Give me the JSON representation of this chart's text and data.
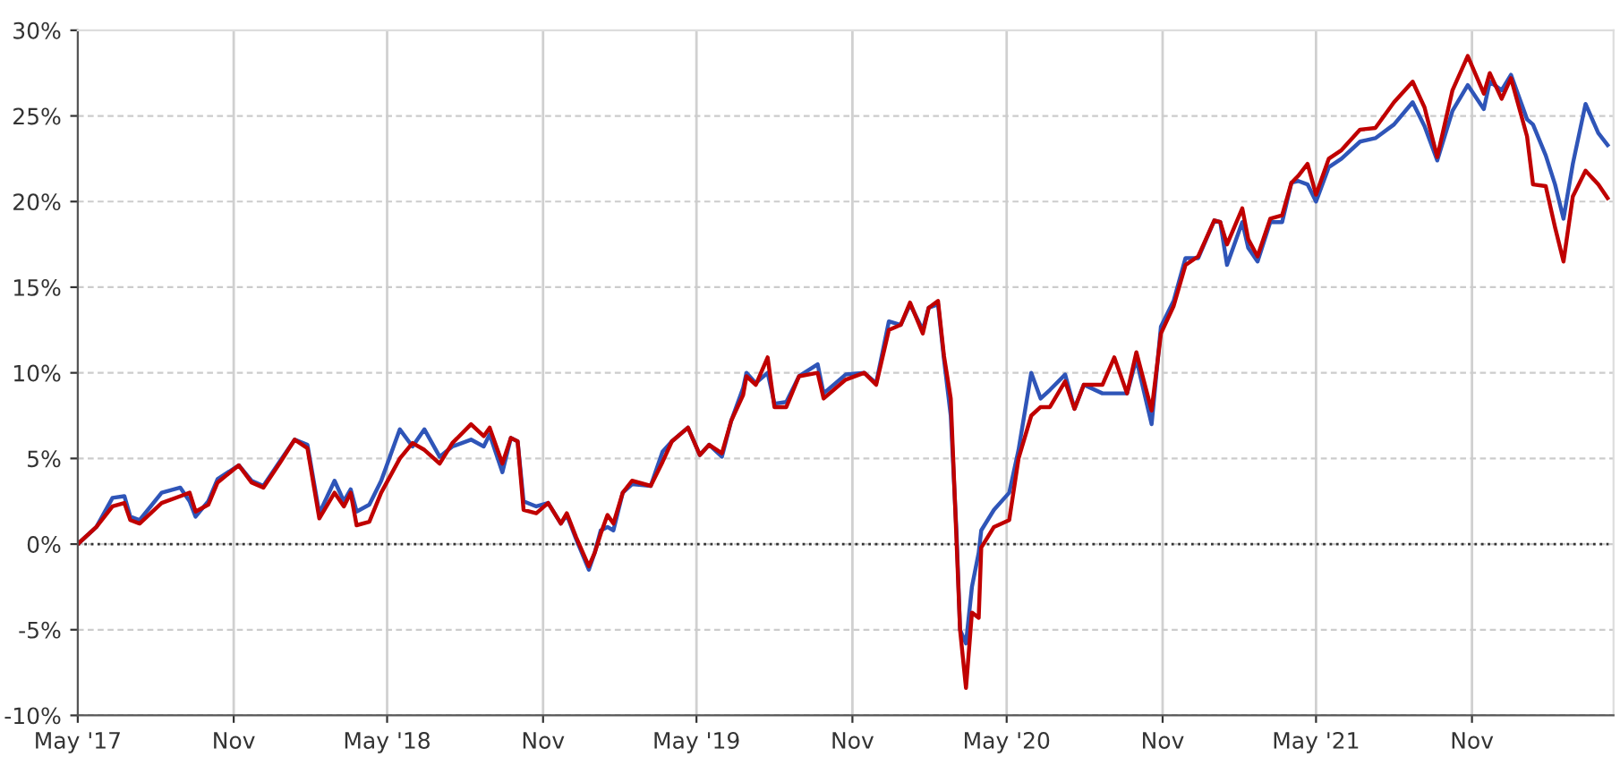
{
  "chart_data": {
    "type": "line",
    "x": [
      "2017-05-01",
      "2017-05-23",
      "2017-06-11",
      "2017-06-25",
      "2017-07-02",
      "2017-07-13",
      "2017-08-08",
      "2017-08-30",
      "2017-09-10",
      "2017-09-17",
      "2017-10-02",
      "2017-10-13",
      "2017-11-07",
      "2017-11-22",
      "2017-12-06",
      "2017-12-25",
      "2018-01-12",
      "2018-01-27",
      "2018-02-10",
      "2018-02-28",
      "2018-03-11",
      "2018-03-19",
      "2018-03-26",
      "2018-04-10",
      "2018-04-24",
      "2018-05-16",
      "2018-05-31",
      "2018-06-14",
      "2018-07-02",
      "2018-07-17",
      "2018-08-08",
      "2018-08-23",
      "2018-08-30",
      "2018-09-14",
      "2018-09-24",
      "2018-10-02",
      "2018-10-09",
      "2018-10-24",
      "2018-11-07",
      "2018-11-22",
      "2018-11-29",
      "2018-12-10",
      "2018-12-25",
      "2019-01-01",
      "2019-01-08",
      "2019-01-16",
      "2019-01-23",
      "2019-02-03",
      "2019-02-14",
      "2019-03-08",
      "2019-03-22",
      "2019-04-02",
      "2019-04-21",
      "2019-05-05",
      "2019-05-16",
      "2019-05-31",
      "2019-06-11",
      "2019-06-25",
      "2019-06-29",
      "2019-07-10",
      "2019-07-24",
      "2019-08-01",
      "2019-08-15",
      "2019-08-30",
      "2019-09-21",
      "2019-09-28",
      "2019-10-24",
      "2019-11-15",
      "2019-11-29",
      "2019-12-14",
      "2019-12-28",
      "2020-01-08",
      "2020-01-23",
      "2020-01-30",
      "2020-02-10",
      "2020-02-17",
      "2020-02-25",
      "2020-03-03",
      "2020-03-07",
      "2020-03-14",
      "2020-03-21",
      "2020-03-29",
      "2020-04-01",
      "2020-04-16",
      "2020-05-04",
      "2020-05-15",
      "2020-05-30",
      "2020-06-10",
      "2020-06-21",
      "2020-07-09",
      "2020-07-20",
      "2020-07-31",
      "2020-08-22",
      "2020-09-05",
      "2020-09-20",
      "2020-10-01",
      "2020-10-19",
      "2020-10-30",
      "2020-11-14",
      "2020-11-28",
      "2020-12-13",
      "2021-01-01",
      "2021-01-08",
      "2021-01-16",
      "2021-02-03",
      "2021-02-10",
      "2021-02-21",
      "2021-03-08",
      "2021-03-22",
      "2021-04-02",
      "2021-04-10",
      "2021-04-21",
      "2021-05-01",
      "2021-05-16",
      "2021-05-31",
      "2021-06-22",
      "2021-07-10",
      "2021-08-01",
      "2021-08-23",
      "2021-09-06",
      "2021-09-21",
      "2021-10-09",
      "2021-10-27",
      "2021-11-15",
      "2021-11-22",
      "2021-12-06",
      "2021-12-17",
      "2022-01-05",
      "2022-01-12",
      "2022-01-27",
      "2022-02-07",
      "2022-02-17",
      "2022-02-28",
      "2022-03-15",
      "2022-03-30",
      "2022-04-10"
    ],
    "series": [
      {
        "color": "#2f55b8",
        "values": [
          0,
          1.0,
          2.7,
          2.8,
          1.6,
          1.4,
          3.0,
          3.3,
          2.5,
          1.6,
          2.5,
          3.8,
          4.6,
          3.7,
          3.4,
          4.8,
          6.1,
          5.8,
          1.8,
          3.7,
          2.5,
          3.2,
          1.9,
          2.3,
          3.7,
          6.7,
          5.7,
          6.7,
          5.1,
          5.7,
          6.1,
          5.7,
          6.4,
          4.2,
          6.2,
          6.0,
          2.5,
          2.2,
          2.4,
          1.2,
          1.7,
          0.3,
          -1.5,
          -0.5,
          0.8,
          1.0,
          0.8,
          3.0,
          3.5,
          3.4,
          5.4,
          6.0,
          6.8,
          5.2,
          5.8,
          5.1,
          7.2,
          9.1,
          10.0,
          9.4,
          10.0,
          8.2,
          8.3,
          9.8,
          10.5,
          8.8,
          9.9,
          10.0,
          9.4,
          13.0,
          12.8,
          14.0,
          12.5,
          13.8,
          14.0,
          10.8,
          7.5,
          0.5,
          -5.0,
          -5.8,
          -2.5,
          -0.5,
          0.8,
          2.0,
          3.0,
          5.5,
          10.0,
          8.5,
          9.0,
          9.9,
          7.9,
          9.3,
          8.8,
          8.8,
          8.8,
          10.8,
          7.0,
          12.7,
          14.2,
          16.7,
          16.7,
          18.9,
          18.8,
          16.3,
          18.8,
          17.3,
          16.5,
          18.8,
          18.8,
          21.1,
          21.2,
          21.0,
          20.0,
          22.0,
          22.5,
          23.5,
          23.7,
          24.5,
          25.8,
          24.4,
          22.4,
          25.3,
          26.8,
          25.4,
          27.0,
          26.5,
          27.4,
          24.8,
          24.5,
          22.7,
          21.0,
          19.0,
          22.2,
          25.7,
          24.0,
          23.3
        ]
      },
      {
        "color": "#c00000",
        "values": [
          0,
          1.0,
          2.2,
          2.4,
          1.4,
          1.2,
          2.4,
          2.8,
          3.0,
          1.9,
          2.3,
          3.6,
          4.6,
          3.6,
          3.3,
          4.7,
          6.1,
          5.6,
          1.5,
          3.0,
          2.2,
          3.0,
          1.1,
          1.3,
          3.0,
          5.0,
          5.9,
          5.5,
          4.7,
          5.9,
          7.0,
          6.3,
          6.8,
          4.7,
          6.2,
          6.0,
          2.0,
          1.8,
          2.4,
          1.2,
          1.8,
          0.4,
          -1.3,
          -0.5,
          0.6,
          1.7,
          1.2,
          3.0,
          3.7,
          3.4,
          4.8,
          6.0,
          6.8,
          5.2,
          5.8,
          5.3,
          7.2,
          8.7,
          9.8,
          9.3,
          10.9,
          8.0,
          8.0,
          9.8,
          10.0,
          8.5,
          9.6,
          10.0,
          9.3,
          12.5,
          12.8,
          14.1,
          12.3,
          13.8,
          14.2,
          11.0,
          8.5,
          0.0,
          -5.0,
          -8.4,
          -4.0,
          -4.3,
          -0.2,
          1.0,
          1.4,
          5.0,
          7.5,
          8.0,
          8.0,
          9.5,
          7.9,
          9.3,
          9.3,
          10.9,
          8.8,
          11.2,
          7.8,
          12.3,
          13.9,
          16.3,
          16.8,
          18.9,
          18.8,
          17.5,
          19.6,
          17.8,
          16.8,
          19.0,
          19.2,
          21.1,
          21.5,
          22.2,
          20.4,
          22.5,
          23.0,
          24.2,
          24.3,
          25.8,
          27.0,
          25.5,
          22.6,
          26.5,
          28.5,
          26.3,
          27.5,
          26.0,
          27.2,
          23.8,
          21.0,
          20.9,
          18.5,
          16.5,
          20.3,
          21.8,
          21.0,
          20.2
        ]
      }
    ],
    "xlim": [
      "2017-05-01",
      "2022-04-17"
    ],
    "xticks": [
      {
        "value": "2017-05-01",
        "label": "May '17"
      },
      {
        "value": "2017-11-01",
        "label": "Nov"
      },
      {
        "value": "2018-05-01",
        "label": "May '18"
      },
      {
        "value": "2018-11-01",
        "label": "Nov"
      },
      {
        "value": "2019-05-01",
        "label": "May '19"
      },
      {
        "value": "2019-11-01",
        "label": "Nov"
      },
      {
        "value": "2020-05-01",
        "label": "May '20"
      },
      {
        "value": "2020-11-01",
        "label": "Nov"
      },
      {
        "value": "2021-05-01",
        "label": "May '21"
      },
      {
        "value": "2021-11-01",
        "label": "Nov"
      }
    ],
    "ylim": [
      -10,
      30
    ],
    "yticks": [
      {
        "value": -10,
        "label": "-10%"
      },
      {
        "value": -5,
        "label": "-5%"
      },
      {
        "value": 0,
        "label": "0%"
      },
      {
        "value": 5,
        "label": "5%"
      },
      {
        "value": 10,
        "label": "10%"
      },
      {
        "value": 15,
        "label": "15%"
      },
      {
        "value": 20,
        "label": "20%"
      },
      {
        "value": 25,
        "label": "25%"
      },
      {
        "value": 30,
        "label": "30%"
      }
    ],
    "ref_lines": [
      {
        "axis": "y",
        "value": 0,
        "color": "#333333",
        "line_style": "dotted"
      }
    ],
    "grid": true,
    "legend": false,
    "marker": "none",
    "line_style": "solid"
  }
}
